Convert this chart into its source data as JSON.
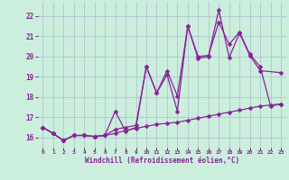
{
  "xlabel": "Windchill (Refroidissement éolien,°C)",
  "bg_color": "#cceedd",
  "grid_color": "#aabbcc",
  "line_color": "#882299",
  "xlim": [
    -0.5,
    23.5
  ],
  "ylim": [
    15.5,
    22.7
  ],
  "xticks": [
    0,
    1,
    2,
    3,
    4,
    5,
    6,
    7,
    8,
    9,
    10,
    11,
    12,
    13,
    14,
    15,
    16,
    17,
    18,
    19,
    20,
    21,
    22,
    23
  ],
  "yticks": [
    16,
    17,
    18,
    19,
    20,
    21,
    22
  ],
  "series1_x": [
    0,
    1,
    2,
    3,
    4,
    5,
    6,
    7,
    8,
    9,
    10,
    11,
    12,
    13,
    14,
    15,
    16,
    17,
    18,
    19,
    20,
    21,
    22,
    23
  ],
  "series1_y": [
    16.5,
    16.2,
    15.85,
    16.1,
    16.1,
    16.05,
    16.1,
    16.2,
    16.35,
    16.45,
    16.55,
    16.65,
    16.7,
    16.75,
    16.85,
    16.95,
    17.05,
    17.15,
    17.25,
    17.35,
    17.45,
    17.55,
    17.6,
    17.65
  ],
  "series2_x": [
    0,
    1,
    2,
    3,
    4,
    5,
    6,
    7,
    8,
    9,
    10,
    11,
    12,
    13,
    14,
    15,
    16,
    17,
    18,
    19,
    20,
    21,
    23
  ],
  "series2_y": [
    16.5,
    16.2,
    15.85,
    16.1,
    16.1,
    16.05,
    16.1,
    17.3,
    16.3,
    16.5,
    19.5,
    18.2,
    19.1,
    17.3,
    21.5,
    19.9,
    20.0,
    22.3,
    19.95,
    21.15,
    20.05,
    19.3,
    19.2
  ],
  "series3_x": [
    0,
    1,
    2,
    3,
    4,
    5,
    6,
    7,
    8,
    9,
    10,
    11,
    12,
    13,
    14,
    15,
    16,
    17,
    18,
    19,
    20,
    21,
    22,
    23
  ],
  "series3_y": [
    16.5,
    16.2,
    15.85,
    16.1,
    16.1,
    16.05,
    16.1,
    16.4,
    16.5,
    16.6,
    19.5,
    18.2,
    19.3,
    18.05,
    21.5,
    20.0,
    20.05,
    21.7,
    20.6,
    21.2,
    20.1,
    19.5,
    17.55,
    17.65
  ]
}
